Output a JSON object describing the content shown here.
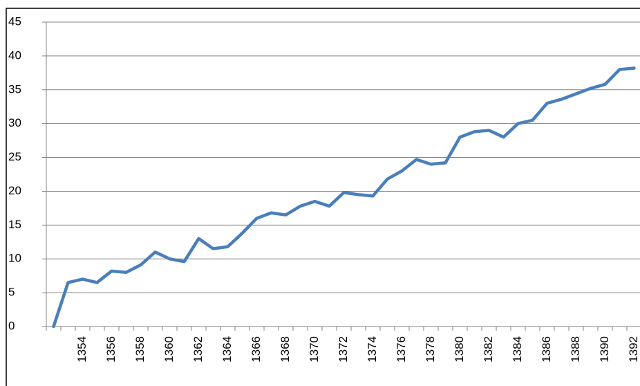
{
  "chart_data": {
    "type": "line",
    "categories": [
      null,
      null,
      "1354",
      null,
      "1356",
      null,
      "1358",
      null,
      "1360",
      null,
      "1362",
      null,
      "1364",
      null,
      "1366",
      null,
      "1368",
      null,
      "1370",
      null,
      "1372",
      null,
      "1374",
      null,
      "1376",
      null,
      "1378",
      null,
      "1380",
      null,
      "1382",
      null,
      "1384",
      null,
      "1386",
      null,
      "1388",
      null,
      "1390",
      null,
      "1392"
    ],
    "values": [
      0,
      6.5,
      7.0,
      6.5,
      8.2,
      8.0,
      9.1,
      11.0,
      10.0,
      9.6,
      13.0,
      11.5,
      11.8,
      13.8,
      16.0,
      16.8,
      16.5,
      17.8,
      18.5,
      17.8,
      19.8,
      19.5,
      19.3,
      21.8,
      23.0,
      24.7,
      24.0,
      24.2,
      28.0,
      28.8,
      29.0,
      28.0,
      30.0,
      30.5,
      33.0,
      33.6,
      34.4,
      35.2,
      35.8,
      38.0,
      38.2
    ],
    "color": "#4a7ebb",
    "ylim": [
      0,
      45
    ],
    "yticks": [
      0,
      5,
      10,
      15,
      20,
      25,
      30,
      35,
      40,
      45
    ],
    "grid": true
  }
}
